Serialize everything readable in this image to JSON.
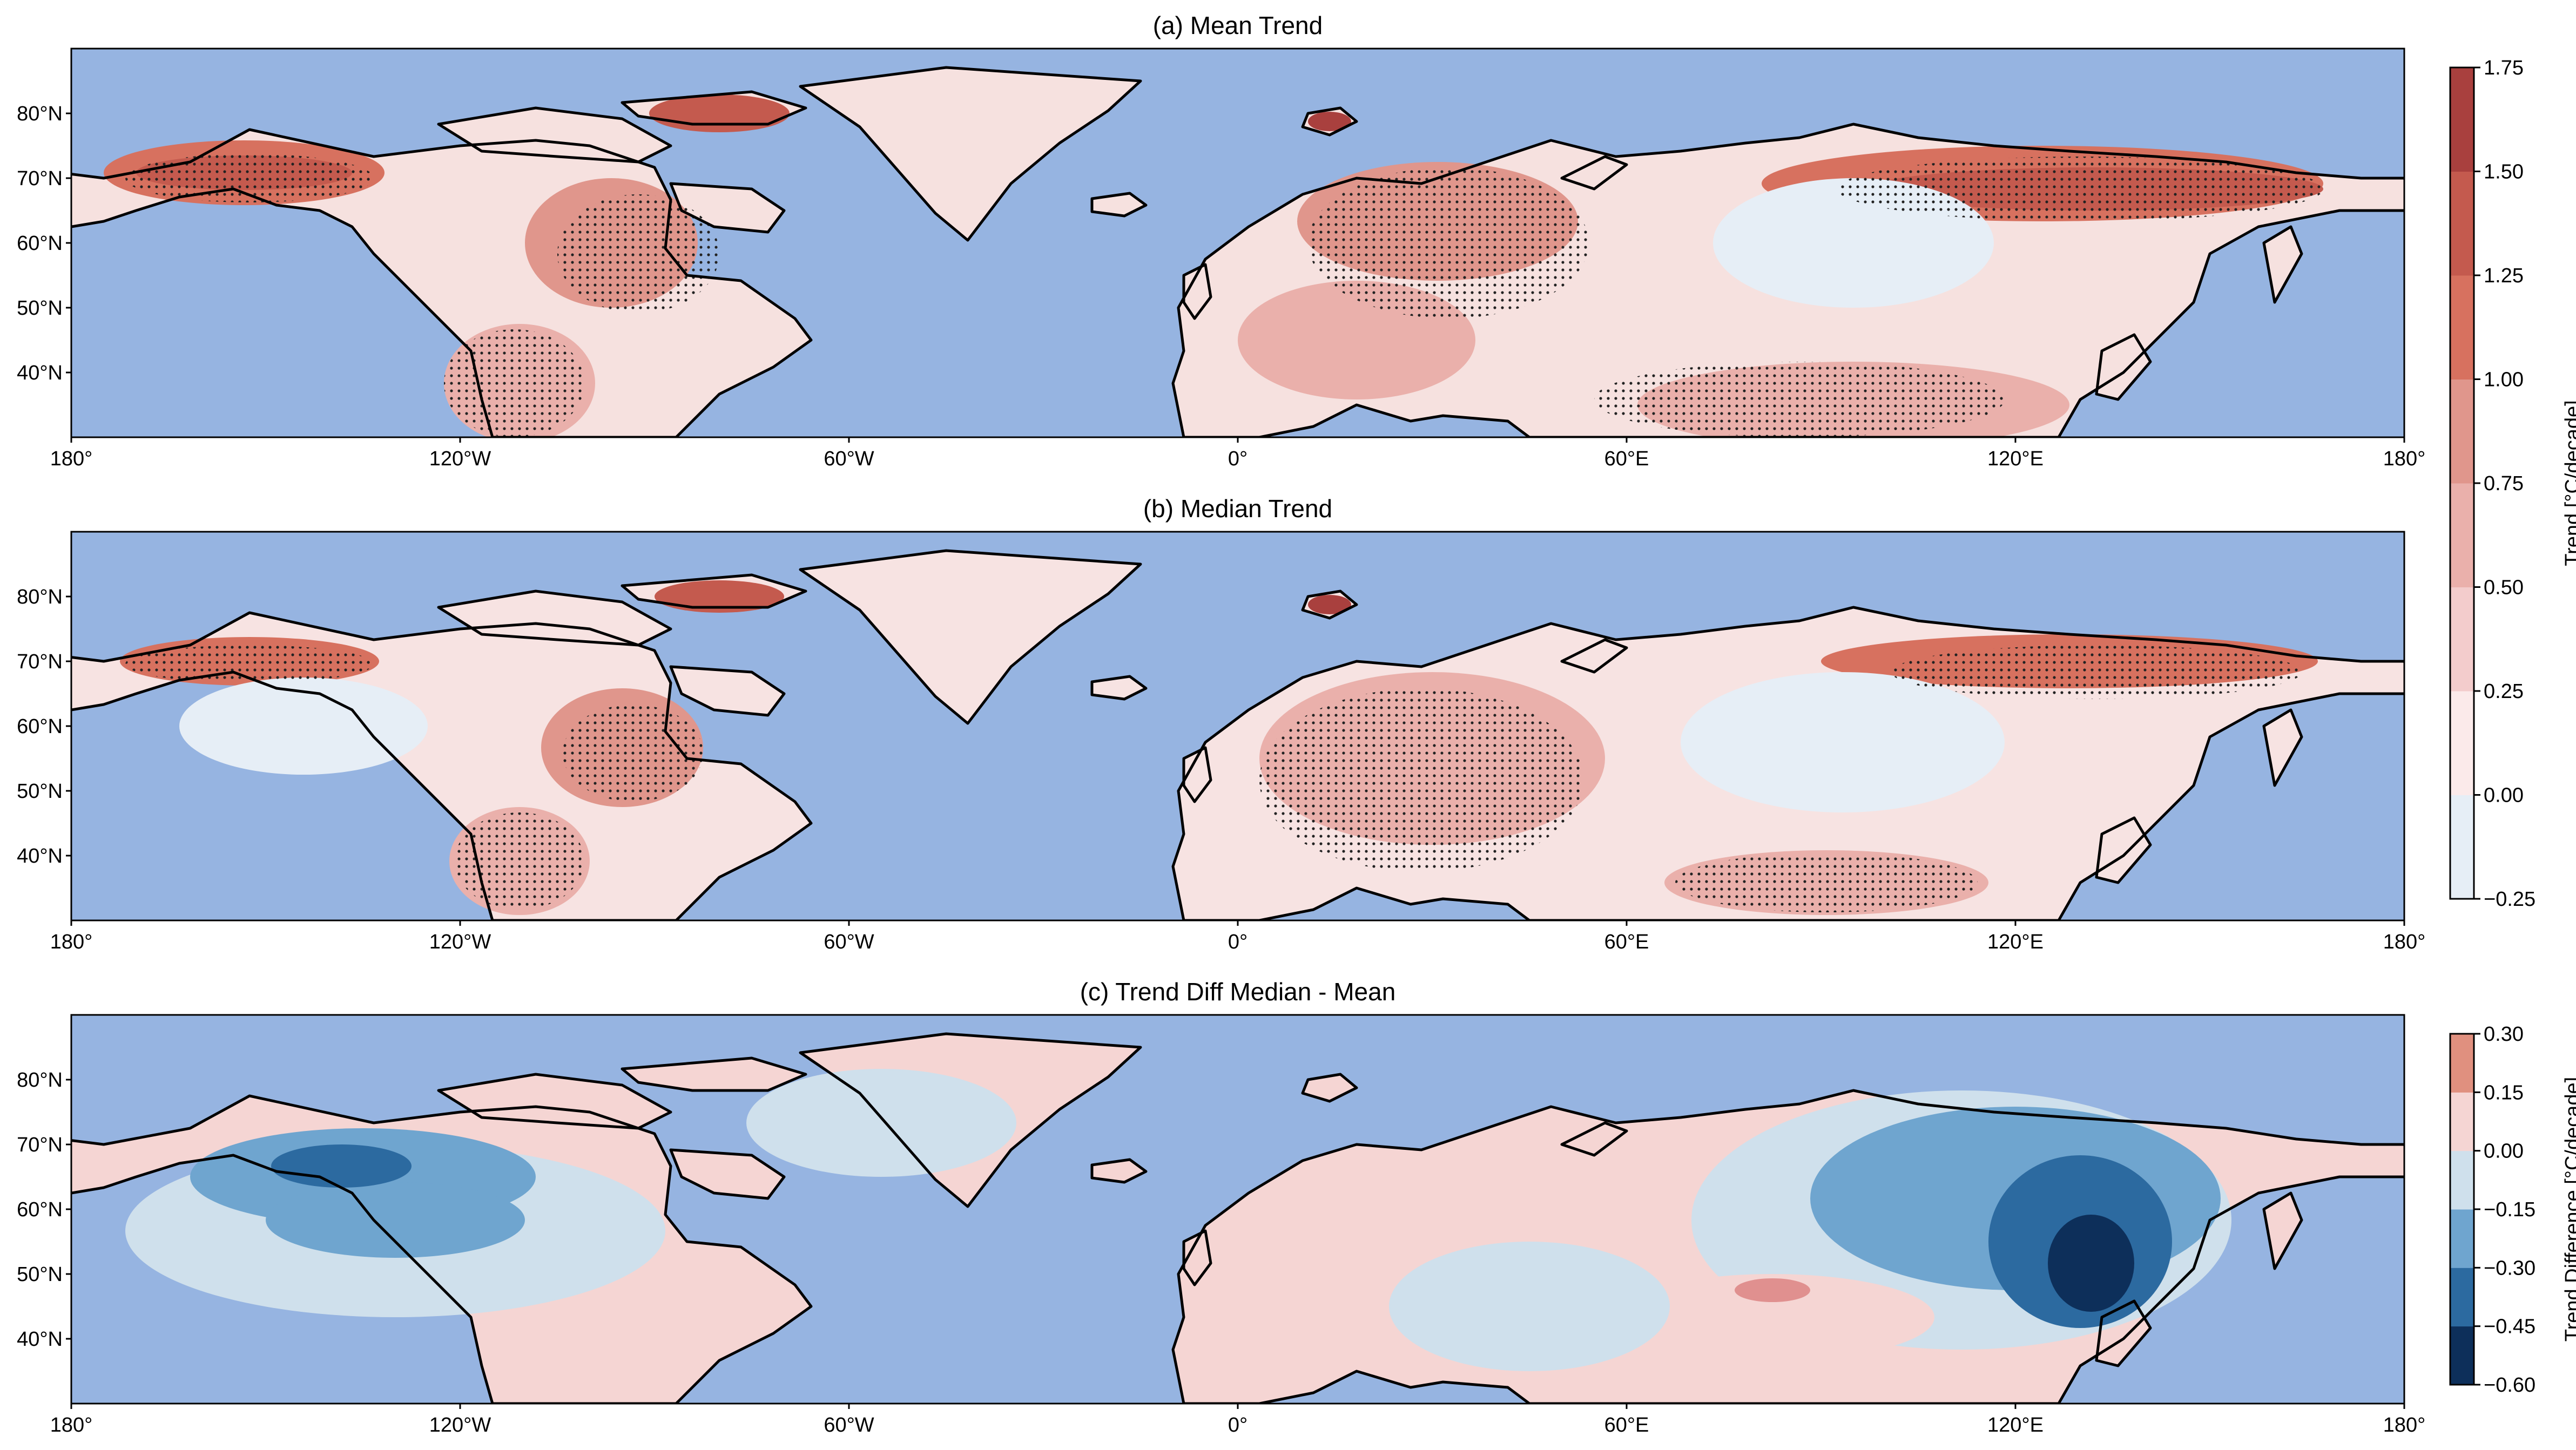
{
  "panels": [
    {
      "title": "(a) Mean Trend",
      "x_ticks": [
        "180°",
        "120°W",
        "60°W",
        "0°",
        "60°E",
        "120°E",
        "180°"
      ],
      "y_ticks": [
        "80°N",
        "70°N",
        "60°N",
        "50°N",
        "40°N"
      ],
      "stippling": "significant trend"
    },
    {
      "title": "(b) Median Trend",
      "x_ticks": [
        "180°",
        "120°W",
        "60°W",
        "0°",
        "60°E",
        "120°E",
        "180°"
      ],
      "y_ticks": [
        "80°N",
        "70°N",
        "60°N",
        "50°N",
        "40°N"
      ],
      "stippling": "significant trend"
    },
    {
      "title": "(c) Trend Diff Median - Mean",
      "x_ticks": [
        "180°",
        "120°W",
        "60°W",
        "0°",
        "60°E",
        "120°E",
        "180°"
      ],
      "y_ticks": [
        "80°N",
        "70°N",
        "60°N",
        "50°N",
        "40°N"
      ]
    }
  ],
  "map": {
    "lon_range": [
      -180,
      180
    ],
    "lat_range": [
      30,
      90
    ],
    "ocean_color": "#96b4e1",
    "coast_color": "#000000"
  },
  "colorbars": [
    {
      "label": "Trend [°C/decade]",
      "ticks": [
        "1.75",
        "1.50",
        "1.25",
        "1.00",
        "0.75",
        "0.50",
        "0.25",
        "0.00",
        "−0.25"
      ],
      "colors": [
        "#e6eef6",
        "#fbeaea",
        "#f3cccc",
        "#eab0ab",
        "#e0968c",
        "#d7715f",
        "#c45a4e",
        "#a9403e"
      ]
    },
    {
      "label": "Trend Difference [°C/decade]",
      "ticks": [
        "0.30",
        "0.15",
        "0.00",
        "−0.15",
        "−0.30",
        "−0.45",
        "−0.60"
      ],
      "colors": [
        "#0d2f5a",
        "#2c6aa0",
        "#6fa5cf",
        "#cfe0ec",
        "#f5d5d3",
        "#e0907f"
      ]
    }
  ]
}
